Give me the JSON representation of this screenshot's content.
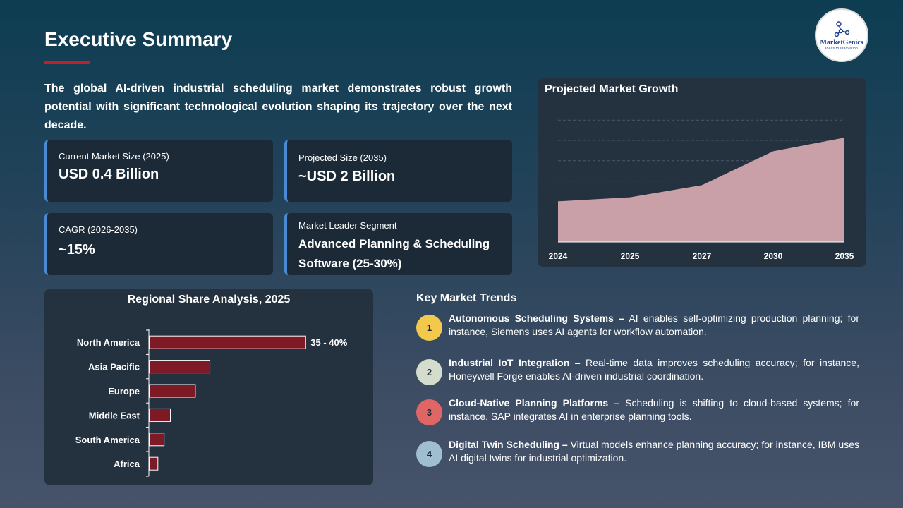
{
  "header": {
    "title": "Executive Summary",
    "logo_name": "MarketGenics",
    "logo_tagline": "Ideas to Innovation"
  },
  "intro": "The global AI-driven industrial scheduling market demonstrates robust growth potential with significant technological evolution shaping its trajectory over the next decade.",
  "cards": [
    {
      "label": "Current Market Size (2025)",
      "value": "USD 0.4 Billion"
    },
    {
      "label": "Projected Size (2035)",
      "value": "~USD 2 Billion"
    },
    {
      "label": "CAGR (2026-2035)",
      "value": "~15%"
    },
    {
      "label": "Market Leader Segment",
      "value": "Advanced Planning & Scheduling Software (25-30%)"
    }
  ],
  "colors": {
    "accent_underline": "#c0202a",
    "card_border": "#4a8ad4",
    "bar_fill": "#7d1a26",
    "area_fill": "#c9a0a8"
  },
  "chart_data": [
    {
      "type": "area",
      "title": "Projected Market Growth",
      "x": [
        "2024",
        "2025",
        "2027",
        "2030",
        "2035"
      ],
      "values": [
        0.3,
        0.33,
        0.42,
        0.67,
        0.77
      ],
      "ylim": [
        0,
        1
      ],
      "grid": true,
      "legend": "none"
    },
    {
      "type": "bar",
      "orientation": "horizontal",
      "title": "Regional Share Analysis, 2025",
      "categories": [
        "North America",
        "Asia Pacific",
        "Europe",
        "Middle East",
        "South America",
        "Africa"
      ],
      "values": [
        37.5,
        14.5,
        11,
        5,
        3.5,
        2
      ],
      "data_labels": [
        "35 - 40%",
        "",
        "",
        "",
        "",
        ""
      ],
      "xlim": [
        0,
        40
      ],
      "legend": "none"
    }
  ],
  "trends": {
    "title": "Key Market Trends",
    "items": [
      {
        "num": "1",
        "color": "#f2c94c",
        "head": "Autonomous Scheduling Systems –",
        "body": " AI enables self-optimizing production planning; for instance, Siemens uses AI agents for workflow automation."
      },
      {
        "num": "2",
        "color": "#d4dccc",
        "head": "Industrial IoT Integration –",
        "body": " Real-time data improves scheduling accuracy; for instance, Honeywell Forge enables AI-driven industrial coordination."
      },
      {
        "num": "3",
        "color": "#e06666",
        "head": "Cloud-Native Planning Platforms –",
        "body": " Scheduling is shifting to cloud-based systems; for instance, SAP integrates AI in enterprise planning tools."
      },
      {
        "num": "4",
        "color": "#9fbfd1",
        "head": "Digital Twin Scheduling –",
        "body": " Virtual models enhance planning accuracy; for instance, IBM uses AI digital twins for industrial optimization."
      }
    ]
  }
}
